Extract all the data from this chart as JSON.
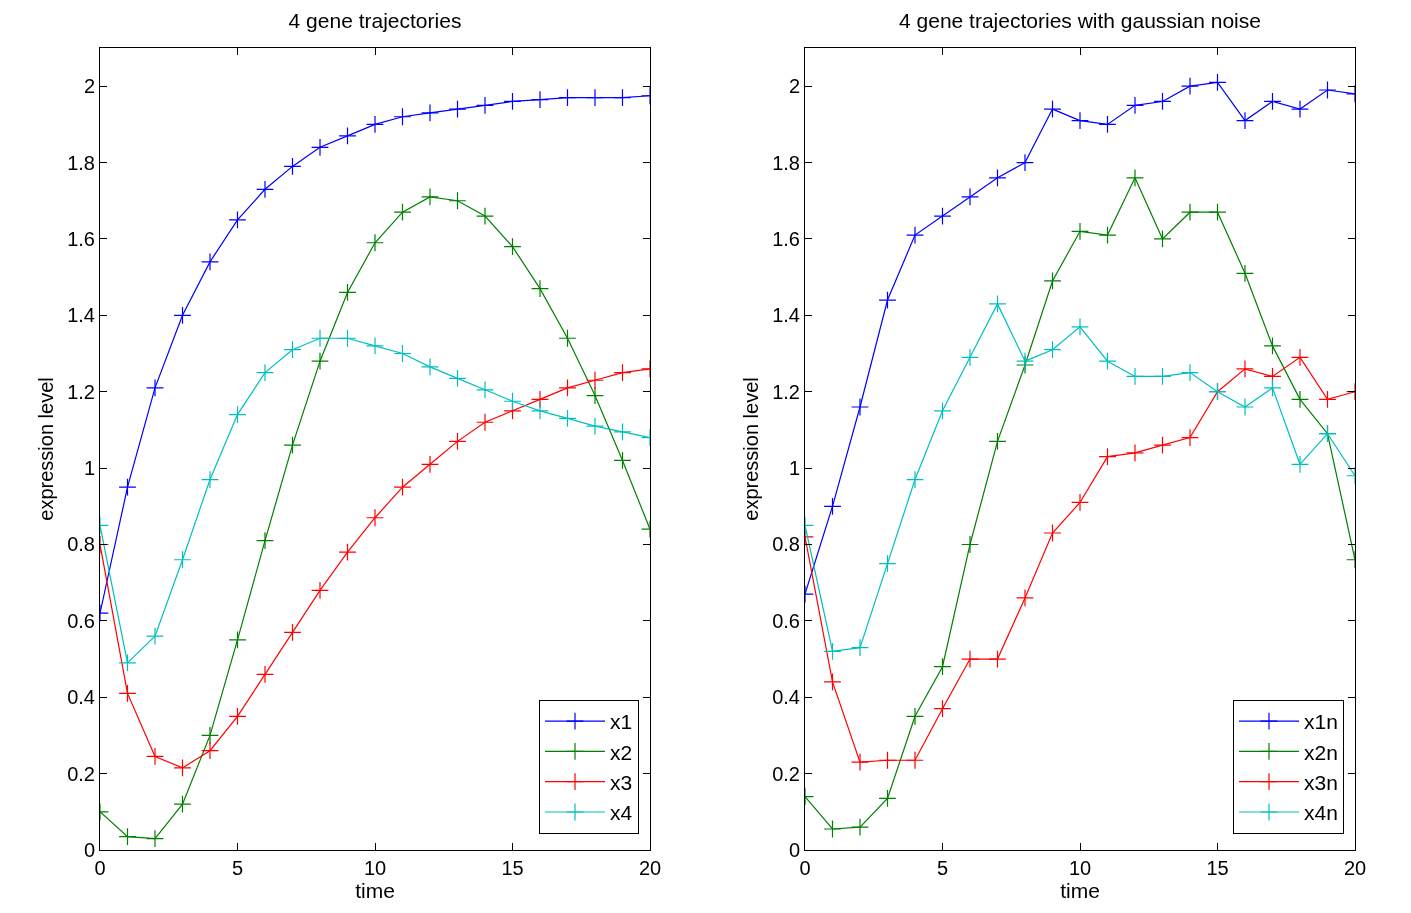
{
  "chart_data": [
    {
      "type": "line",
      "title": "4 gene trajectories",
      "xlabel": "time",
      "ylabel": "expression level",
      "x": [
        0,
        1,
        2,
        3,
        4,
        5,
        6,
        7,
        8,
        9,
        10,
        11,
        12,
        13,
        14,
        15,
        16,
        17,
        18,
        19,
        20
      ],
      "xlim": [
        0,
        20
      ],
      "xticks": [
        0,
        5,
        10,
        15,
        20
      ],
      "ylim": [
        0,
        2.1
      ],
      "yticks": [
        0,
        0.2,
        0.4,
        0.6,
        0.8,
        1,
        1.2,
        1.4,
        1.6,
        1.8,
        2
      ],
      "grid": false,
      "legend": "bottom right",
      "marker": "cross",
      "line_style": "solid",
      "series": [
        {
          "name": "x1",
          "color": "#0000ff",
          "values": [
            0.62,
            0.95,
            1.21,
            1.4,
            1.54,
            1.65,
            1.73,
            1.79,
            1.84,
            1.87,
            1.9,
            1.92,
            1.93,
            1.94,
            1.95,
            1.96,
            1.965,
            1.97,
            1.97,
            1.97,
            1.975
          ]
        },
        {
          "name": "x2",
          "color": "#008000",
          "values": [
            0.1,
            0.035,
            0.03,
            0.12,
            0.3,
            0.55,
            0.81,
            1.06,
            1.28,
            1.46,
            1.59,
            1.67,
            1.71,
            1.7,
            1.66,
            1.58,
            1.47,
            1.34,
            1.19,
            1.02,
            0.84
          ]
        },
        {
          "name": "x3",
          "color": "#ff0000",
          "values": [
            0.8,
            0.41,
            0.245,
            0.215,
            0.26,
            0.35,
            0.46,
            0.57,
            0.68,
            0.78,
            0.87,
            0.95,
            1.01,
            1.07,
            1.12,
            1.15,
            1.18,
            1.21,
            1.23,
            1.25,
            1.26
          ]
        },
        {
          "name": "x4",
          "color": "#00bfbf",
          "values": [
            0.85,
            0.49,
            0.56,
            0.76,
            0.97,
            1.14,
            1.25,
            1.31,
            1.34,
            1.34,
            1.32,
            1.3,
            1.265,
            1.235,
            1.205,
            1.175,
            1.15,
            1.13,
            1.11,
            1.095,
            1.08
          ]
        }
      ]
    },
    {
      "type": "line",
      "title": "4 gene trajectories with gaussian noise",
      "xlabel": "time",
      "ylabel": "expression level",
      "x": [
        0,
        1,
        2,
        3,
        4,
        5,
        6,
        7,
        8,
        9,
        10,
        11,
        12,
        13,
        14,
        15,
        16,
        17,
        18,
        19,
        20
      ],
      "xlim": [
        0,
        20
      ],
      "xticks": [
        0,
        5,
        10,
        15,
        20
      ],
      "ylim": [
        0,
        2.1
      ],
      "yticks": [
        0,
        0.2,
        0.4,
        0.6,
        0.8,
        1,
        1.2,
        1.4,
        1.6,
        1.8,
        2
      ],
      "grid": false,
      "legend": "bottom right",
      "marker": "cross",
      "line_style": "solid",
      "series": [
        {
          "name": "x1n",
          "color": "#0000ff",
          "values": [
            0.67,
            0.9,
            1.16,
            1.44,
            1.61,
            1.66,
            1.71,
            1.76,
            1.8,
            1.94,
            1.91,
            1.9,
            1.95,
            1.96,
            2.0,
            2.01,
            1.91,
            1.96,
            1.94,
            1.99,
            1.98
          ]
        },
        {
          "name": "x2n",
          "color": "#008000",
          "values": [
            0.14,
            0.055,
            0.06,
            0.135,
            0.35,
            0.48,
            0.8,
            1.07,
            1.27,
            1.49,
            1.62,
            1.61,
            1.76,
            1.6,
            1.67,
            1.67,
            1.51,
            1.32,
            1.18,
            1.09,
            0.76
          ]
        },
        {
          "name": "x3n",
          "color": "#ff0000",
          "values": [
            0.82,
            0.44,
            0.23,
            0.235,
            0.235,
            0.37,
            0.5,
            0.5,
            0.66,
            0.83,
            0.91,
            1.03,
            1.04,
            1.06,
            1.08,
            1.2,
            1.26,
            1.24,
            1.29,
            1.18,
            1.2
          ]
        },
        {
          "name": "x4n",
          "color": "#00bfbf",
          "values": [
            0.85,
            0.52,
            0.53,
            0.75,
            0.97,
            1.15,
            1.29,
            1.43,
            1.28,
            1.31,
            1.37,
            1.28,
            1.24,
            1.24,
            1.25,
            1.2,
            1.16,
            1.21,
            1.01,
            1.09,
            0.98
          ]
        }
      ]
    }
  ]
}
